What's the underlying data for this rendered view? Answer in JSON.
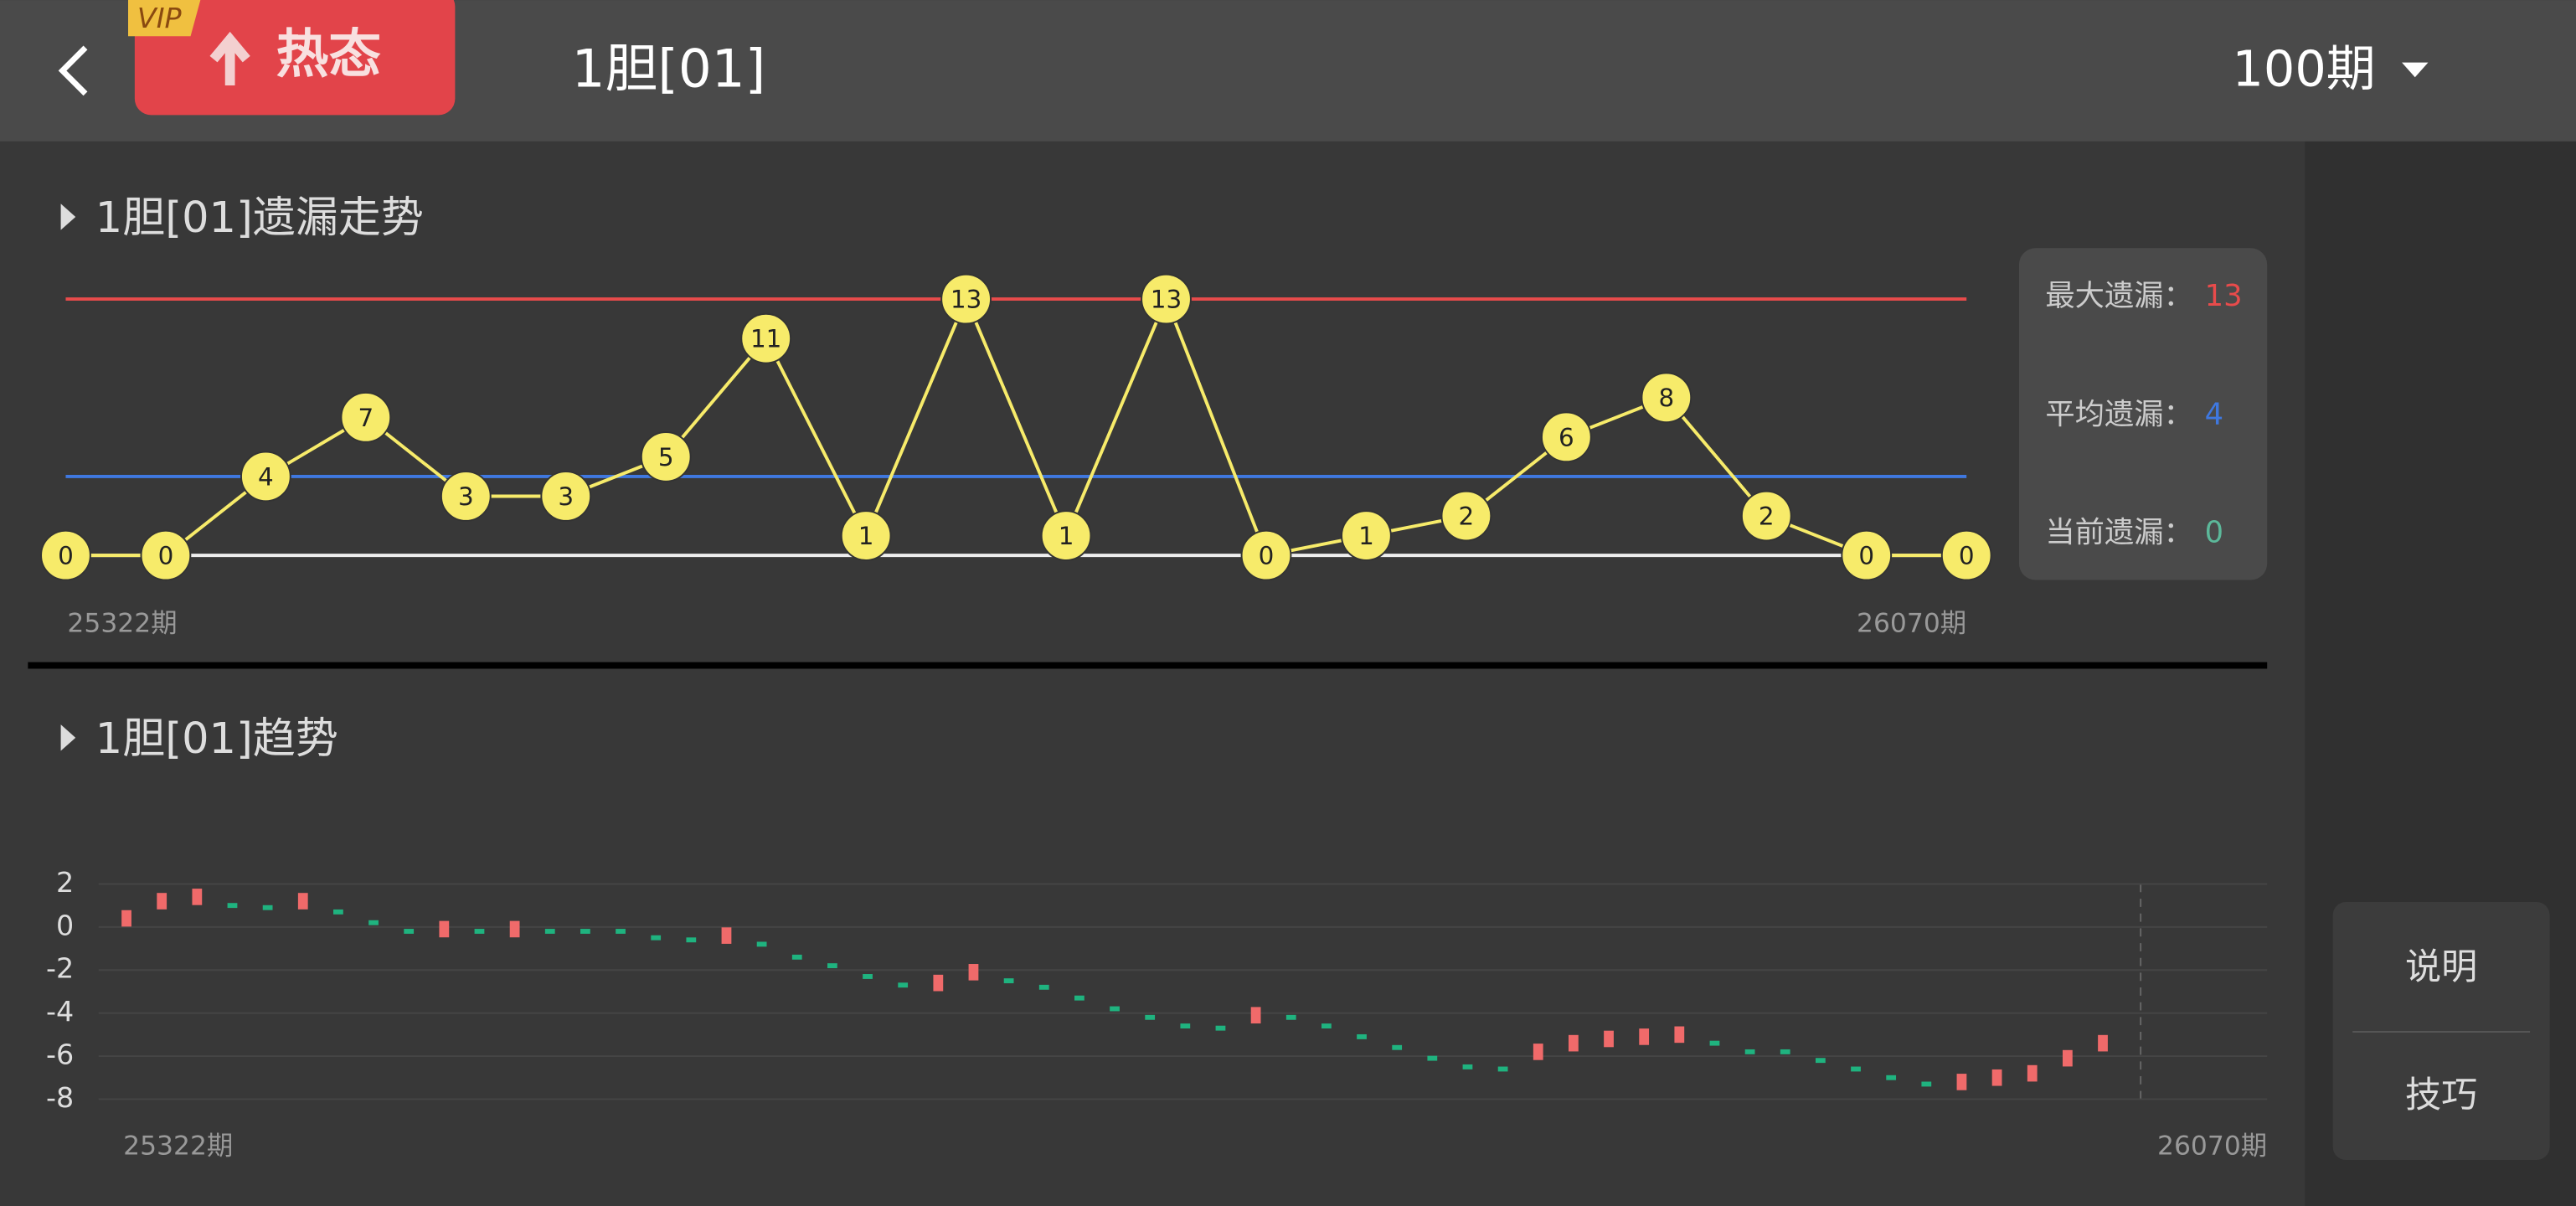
{
  "header": {
    "badge": "VIP",
    "tag": "热态",
    "title": "1胆[01]",
    "period": "100期"
  },
  "chart_data": [
    {
      "type": "omission",
      "title": "1胆[01]遗漏走势",
      "color": "#f7eb6a",
      "values": [
        0,
        0,
        4,
        7,
        3,
        3,
        5,
        11,
        1,
        13,
        1,
        13,
        0,
        1,
        2,
        6,
        8,
        2,
        0,
        0
      ],
      "ylim": [
        0,
        13
      ],
      "x_labels": [
        "25322期",
        "26070期"
      ],
      "stats": [
        {
          "label": "最大遗漏：",
          "value": 13,
          "color": "#e84b4b"
        },
        {
          "label": "平均遗漏：",
          "value": 4,
          "color": "#3f78e0"
        },
        {
          "label": "当前遗漏：",
          "value": 0,
          "color": "#5cb89a"
        }
      ]
    },
    {
      "type": "trend",
      "title": "1胆[01]趋势",
      "up_color": "#f06a6a",
      "down_color": "#1fb37f",
      "values": [
        0.4,
        1.2,
        1.4,
        1.0,
        0.9,
        1.2,
        0.7,
        0.2,
        -0.2,
        -0.1,
        -0.2,
        -0.1,
        -0.2,
        -0.2,
        -0.2,
        -0.5,
        -0.6,
        -0.4,
        -0.8,
        -1.4,
        -1.8,
        -2.3,
        -2.7,
        -2.6,
        -2.1,
        -2.5,
        -2.8,
        -3.3,
        -3.8,
        -4.2,
        -4.6,
        -4.7,
        -4.1,
        -4.2,
        -4.6,
        -5.1,
        -5.6,
        -6.1,
        -6.5,
        -6.6,
        -5.8,
        -5.4,
        -5.2,
        -5.1,
        -5.0,
        -5.4,
        -5.8,
        -5.8,
        -6.2,
        -6.6,
        -7.0,
        -7.3,
        -7.2,
        -7.0,
        -6.8,
        -6.1,
        -5.4
      ],
      "ylim": [
        -8,
        2
      ],
      "yticks": [
        2,
        0,
        -2,
        -4,
        -6,
        -8
      ],
      "grid": true,
      "x_labels": [
        "25322期",
        "26070期"
      ]
    }
  ],
  "side_buttons": [
    "说明",
    "技巧"
  ]
}
